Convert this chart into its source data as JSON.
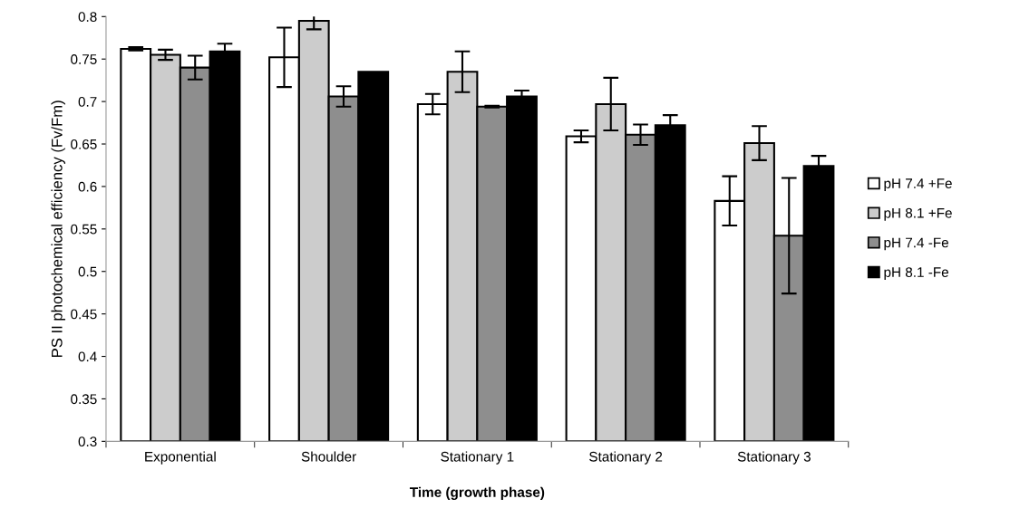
{
  "chart_data": {
    "type": "bar",
    "xlabel": "Time (growth phase)",
    "ylabel": "PS II photochemical efficiency (Fv/Fm)",
    "categories": [
      "Exponential",
      "Shoulder",
      "Stationary 1",
      "Stationary 2",
      "Stationary 3"
    ],
    "series": [
      {
        "name": "pH 7.4 +Fe",
        "color": "#ffffff",
        "values": [
          0.762,
          0.752,
          0.697,
          0.659,
          0.583
        ],
        "errors": [
          0.002,
          0.035,
          0.012,
          0.007,
          0.029
        ]
      },
      {
        "name": "pH 8.1 +Fe",
        "color": "#cccccc",
        "values": [
          0.755,
          0.795,
          0.735,
          0.697,
          0.651
        ],
        "errors": [
          0.006,
          0.01,
          0.024,
          0.031,
          0.02
        ]
      },
      {
        "name": "pH 7.4 -Fe",
        "color": "#8e8e8e",
        "values": [
          0.74,
          0.706,
          0.694,
          0.661,
          0.542
        ],
        "errors": [
          0.014,
          0.012,
          0.001,
          0.012,
          0.068
        ]
      },
      {
        "name": "pH 8.1 -Fe",
        "color": "#000000",
        "values": [
          0.759,
          0.735,
          0.706,
          0.672,
          0.624
        ],
        "errors": [
          0.009,
          null,
          0.007,
          0.012,
          0.012
        ]
      }
    ],
    "ylim": [
      0.3,
      0.8
    ],
    "yticks": [
      0.3,
      0.35,
      0.4,
      0.45,
      0.5,
      0.55,
      0.6,
      0.65,
      0.7,
      0.75,
      0.8
    ],
    "grid": false,
    "legend": "right"
  }
}
